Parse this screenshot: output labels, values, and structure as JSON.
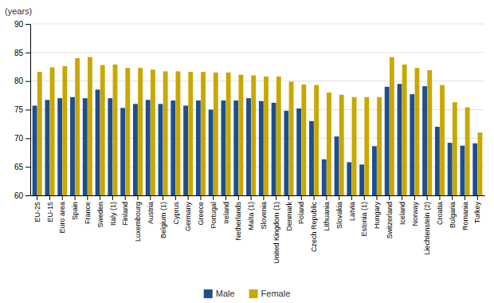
{
  "chart_data": {
    "type": "bar",
    "ylabel": "(years)",
    "categories": [
      "EU-25",
      "EU-15",
      "Euro area",
      "Spain",
      "France",
      "Sweden",
      "Italy (1)",
      "Finland",
      "Luxembourg",
      "Austria",
      "Belgium (1)",
      "Cyprus",
      "Germany",
      "Greece",
      "Portugal",
      "Ireland",
      "Netherlands",
      "Malta (1)",
      "Slovenia",
      "United Kingdom (1)",
      "Denmark",
      "Poland",
      "Czech Republic",
      "Lithuania",
      "Slovakia",
      "Latvia",
      "Estonia (1)",
      "Hungary",
      "Switzerland",
      "Iceland",
      "Norway",
      "Liechtenstein (2)",
      "Croatia",
      "Bulgaria",
      "Romania",
      "Turkey"
    ],
    "series": [
      {
        "name": "Male",
        "color": "#1f4e8c",
        "values": [
          75.7,
          76.7,
          77.0,
          77.2,
          77.0,
          78.5,
          77.0,
          75.3,
          76.0,
          76.7,
          76.0,
          76.6,
          75.7,
          76.6,
          75.0,
          76.6,
          76.6,
          77.0,
          76.5,
          76.2,
          74.8,
          75.2,
          73.0,
          66.3,
          70.3,
          65.8,
          65.4,
          68.6,
          79.0,
          79.5,
          77.7,
          79.1,
          72.0,
          69.2,
          68.7,
          69.1
        ]
      },
      {
        "name": "Female",
        "color": "#c8a800",
        "values": [
          81.6,
          82.4,
          82.6,
          84.0,
          84.2,
          82.8,
          82.9,
          82.3,
          82.3,
          82.0,
          81.7,
          81.7,
          81.6,
          81.6,
          81.5,
          81.5,
          81.1,
          81.0,
          80.8,
          80.8,
          79.9,
          79.4,
          79.3,
          78.0,
          77.6,
          77.2,
          77.2,
          77.2,
          84.2,
          82.9,
          82.3,
          81.9,
          79.3,
          76.3,
          75.4,
          71.0
        ]
      }
    ],
    "ylim": [
      60,
      90
    ],
    "yticks": [
      60,
      65,
      70,
      75,
      80,
      85,
      90
    ],
    "grid": true,
    "legend": "bottom"
  }
}
